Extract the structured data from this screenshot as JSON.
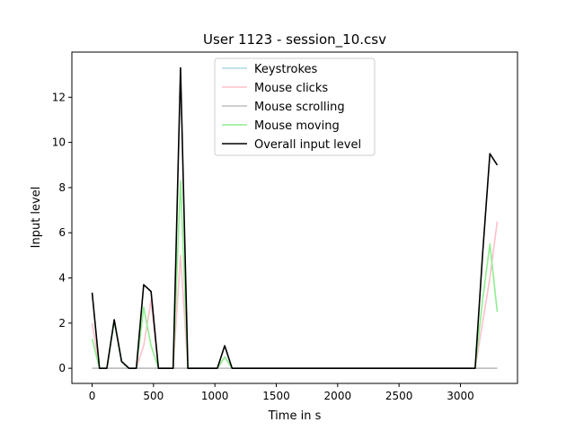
{
  "chart_data": {
    "type": "line",
    "title": "User 1123 - session_10.csv",
    "xlabel": "Time in s",
    "ylabel": "Input level",
    "xlim": [
      -165,
      3465
    ],
    "ylim": [
      -0.67,
      14.0
    ],
    "xticks": [
      0,
      500,
      1000,
      1500,
      2000,
      2500,
      3000
    ],
    "yticks": [
      0,
      2,
      4,
      6,
      8,
      10,
      12
    ],
    "grid": false,
    "legend_position": "top-center",
    "series": [
      {
        "name": "Keystrokes",
        "color": "#add8e6",
        "x": [
          0,
          3300
        ],
        "y": [
          0,
          0
        ]
      },
      {
        "name": "Mouse clicks",
        "color": "#ffc0cb",
        "x": [
          0,
          60,
          120,
          180,
          240,
          300,
          360,
          420,
          480,
          540,
          600,
          660,
          720,
          780,
          840,
          900,
          960,
          1020,
          1080,
          1140,
          1200,
          3120,
          3180,
          3240,
          3300
        ],
        "y": [
          2.0,
          0,
          0,
          0,
          0,
          0,
          0,
          1.0,
          3.0,
          0,
          0,
          0,
          5.0,
          0,
          0,
          0,
          0,
          0,
          0.5,
          0,
          0,
          0,
          2.0,
          4.0,
          6.5
        ]
      },
      {
        "name": "Mouse scrolling",
        "color": "#bfbfbf",
        "x": [
          0,
          3300
        ],
        "y": [
          0,
          0
        ]
      },
      {
        "name": "Mouse moving",
        "color": "#90ee90",
        "x": [
          0,
          60,
          120,
          180,
          240,
          300,
          360,
          420,
          480,
          540,
          600,
          660,
          720,
          780,
          840,
          900,
          960,
          1020,
          1080,
          1140,
          1200,
          3120,
          3180,
          3240,
          3300
        ],
        "y": [
          1.3,
          0,
          0,
          2.1,
          0.3,
          0,
          0,
          2.7,
          1.0,
          0,
          0,
          0,
          8.3,
          0,
          0,
          0,
          0,
          0,
          0.5,
          0,
          0,
          0,
          3.0,
          5.5,
          2.5
        ]
      },
      {
        "name": "Overall input level",
        "color": "#000000",
        "x": [
          0,
          60,
          120,
          180,
          240,
          300,
          360,
          420,
          480,
          540,
          600,
          660,
          720,
          780,
          840,
          900,
          960,
          1020,
          1080,
          1140,
          1200,
          3120,
          3180,
          3240,
          3300
        ],
        "y": [
          3.35,
          0,
          0,
          2.15,
          0.3,
          0,
          0,
          3.7,
          3.4,
          0,
          0,
          0,
          13.3,
          0,
          0,
          0,
          0,
          0,
          1.0,
          0,
          0,
          0,
          5.0,
          9.5,
          9.0
        ]
      }
    ]
  }
}
